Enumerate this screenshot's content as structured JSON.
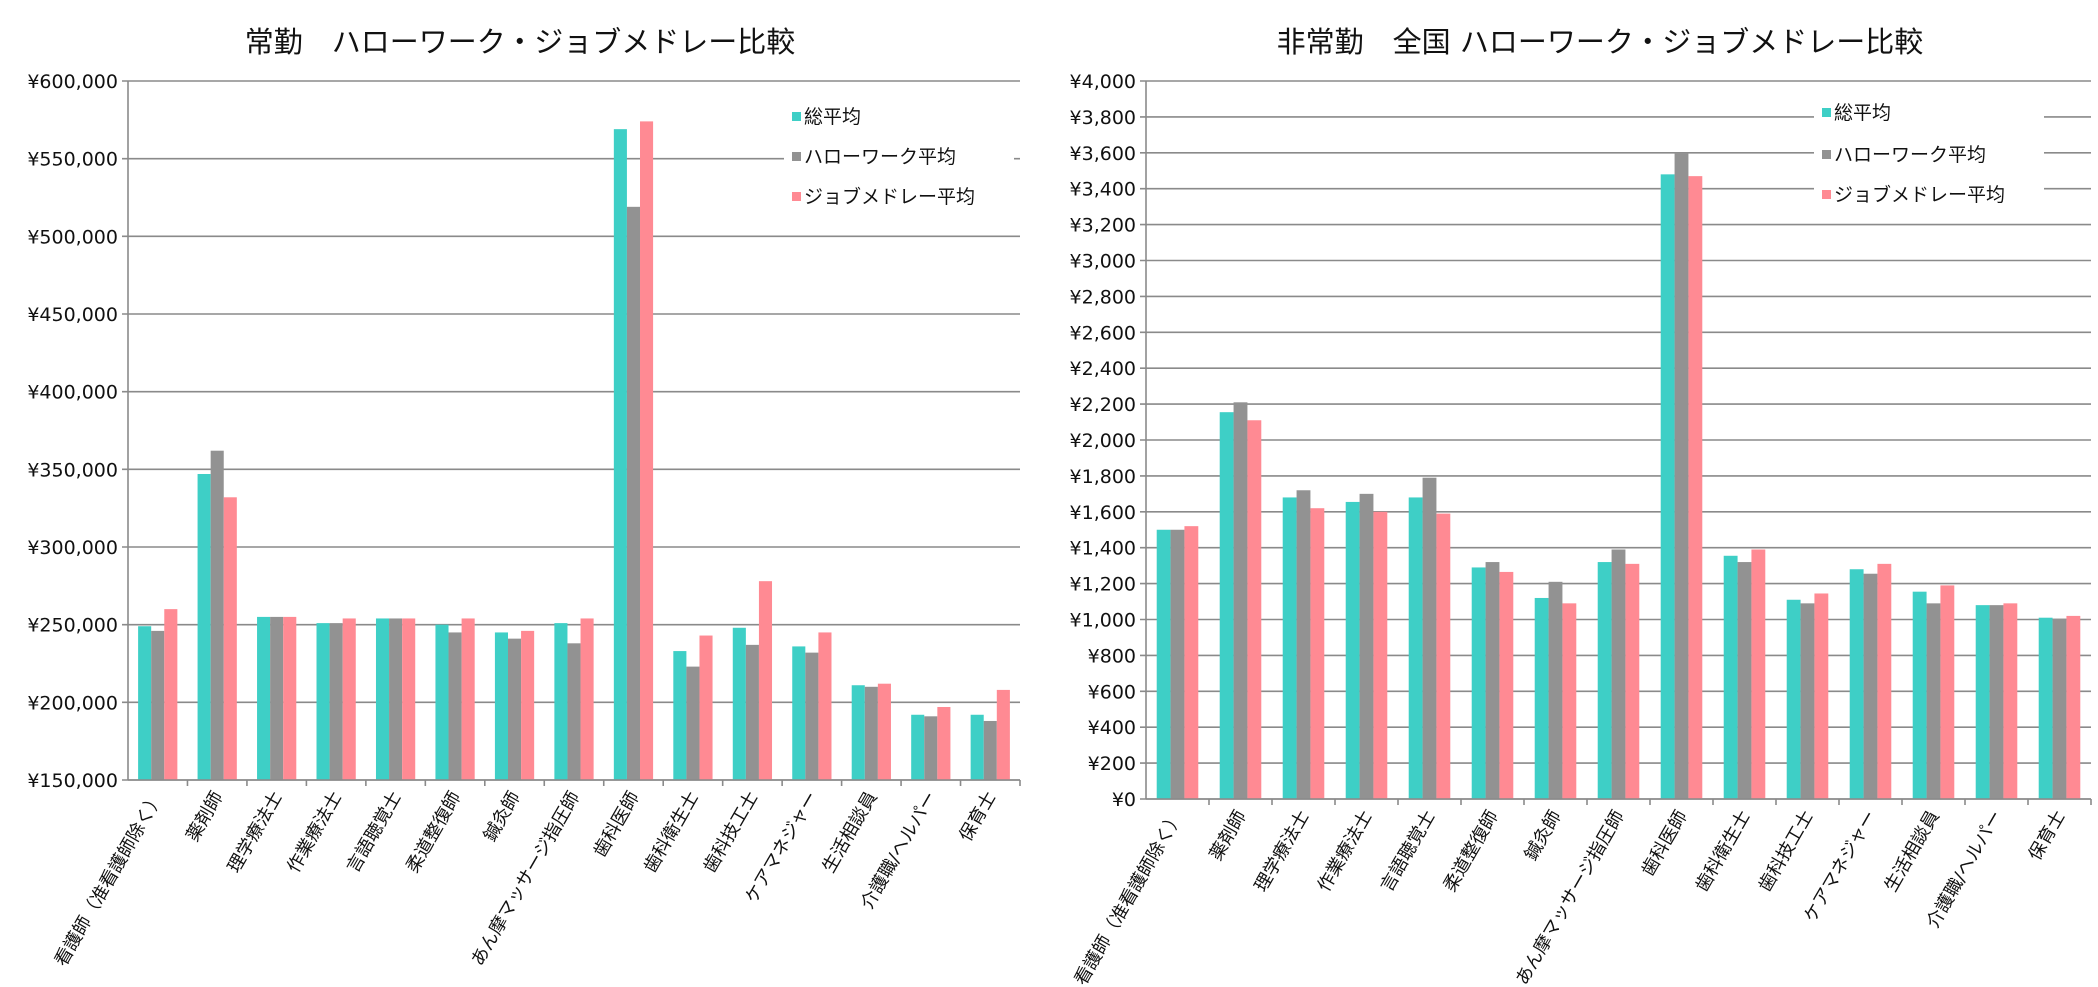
{
  "chart_data": [
    {
      "type": "bar",
      "title": "常勤　ハローワーク・ジョブメドレー比較",
      "xlabel": "",
      "ylabel": "",
      "ylim": [
        150000,
        600000
      ],
      "ytick_step": 50000,
      "ytick_labels": [
        "¥150,000",
        "¥200,000",
        "¥250,000",
        "¥300,000",
        "¥350,000",
        "¥400,000",
        "¥450,000",
        "¥500,000",
        "¥550,000",
        "¥600,000"
      ],
      "grid": true,
      "legend": "top-right",
      "categories": [
        "看護師（准看護師除く）",
        "薬剤師",
        "理学療法士",
        "作業療法士",
        "言語聴覚士",
        "柔道整復師",
        "鍼灸師",
        "あん摩マッサージ指圧師",
        "歯科医師",
        "歯科衛生士",
        "歯科技工士",
        "ケアマネジャー",
        "生活相談員",
        "介護職/ヘルパー",
        "保育士"
      ],
      "series": [
        {
          "name": "総平均",
          "color": "#3ecfc6",
          "values": [
            249000,
            347000,
            255000,
            251000,
            254000,
            250000,
            245000,
            251000,
            569000,
            233000,
            248000,
            236000,
            211000,
            192000,
            192000
          ]
        },
        {
          "name": "ハローワーク平均",
          "color": "#929292",
          "values": [
            246000,
            362000,
            255000,
            251000,
            254000,
            245000,
            241000,
            238000,
            519000,
            223000,
            237000,
            232000,
            210000,
            191000,
            188000
          ]
        },
        {
          "name": "ジョブメドレー平均",
          "color": "#ff8a93",
          "values": [
            260000,
            332000,
            255000,
            254000,
            254000,
            254000,
            246000,
            254000,
            574000,
            243000,
            278000,
            245000,
            212000,
            197000,
            208000
          ]
        }
      ]
    },
    {
      "type": "bar",
      "title": "非常勤　全国 ハローワーク・ジョブメドレー比較",
      "xlabel": "",
      "ylabel": "",
      "ylim": [
        0,
        4000
      ],
      "ytick_step": 200,
      "ytick_labels": [
        "¥0",
        "¥200",
        "¥400",
        "¥600",
        "¥800",
        "¥1,000",
        "¥1,200",
        "¥1,400",
        "¥1,600",
        "¥1,800",
        "¥2,000",
        "¥2,200",
        "¥2,400",
        "¥2,600",
        "¥2,800",
        "¥3,000",
        "¥3,200",
        "¥3,400",
        "¥3,600",
        "¥3,800",
        "¥4,000"
      ],
      "grid": true,
      "legend": "top-right",
      "categories": [
        "看護師（准看護師除く）",
        "薬剤師",
        "理学療法士",
        "作業療法士",
        "言語聴覚士",
        "柔道整復師",
        "鍼灸師",
        "あん摩マッサージ指圧師",
        "歯科医師",
        "歯科衛生士",
        "歯科技工士",
        "ケアマネジャー",
        "生活相談員",
        "介護職/ヘルパー",
        "保育士"
      ],
      "series": [
        {
          "name": "総平均",
          "color": "#3ecfc6",
          "values": [
            1500,
            2155,
            1680,
            1655,
            1680,
            1290,
            1120,
            1320,
            3480,
            1355,
            1110,
            1280,
            1155,
            1080,
            1010
          ]
        },
        {
          "name": "ハローワーク平均",
          "color": "#929292",
          "values": [
            1500,
            2210,
            1720,
            1700,
            1790,
            1320,
            1210,
            1390,
            3600,
            1320,
            1090,
            1255,
            1090,
            1080,
            1005
          ]
        },
        {
          "name": "ジョブメドレー平均",
          "color": "#ff8a93",
          "values": [
            1520,
            2110,
            1620,
            1600,
            1590,
            1265,
            1090,
            1310,
            3470,
            1390,
            1145,
            1310,
            1190,
            1090,
            1020
          ]
        }
      ]
    }
  ]
}
